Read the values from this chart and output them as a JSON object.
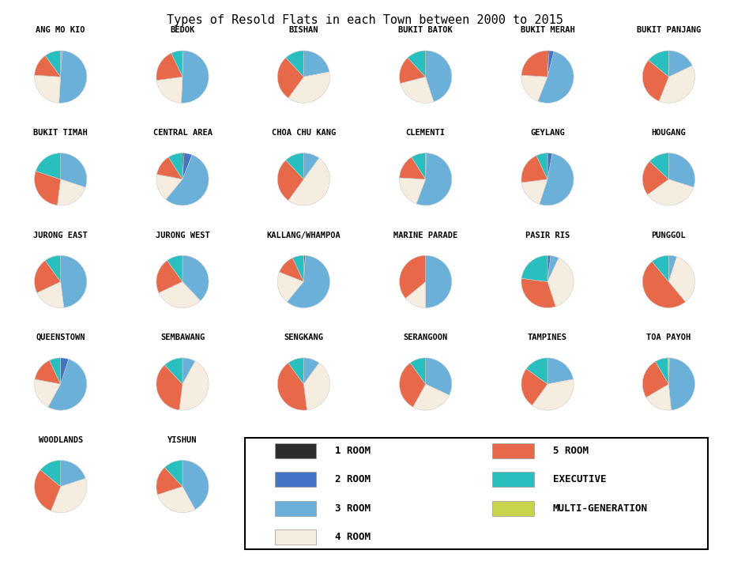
{
  "title": "Types of Resold Flats in each Town between 2000 to 2015",
  "colors": {
    "1 ROOM": "#2d2d2d",
    "2 ROOM": "#4472c4",
    "3 ROOM": "#6ab0d8",
    "4 ROOM": "#f5ede0",
    "5 ROOM": "#e8694a",
    "EXECUTIVE": "#2abfbf",
    "MULTI-GENERATION": "#c8d44c"
  },
  "towns": [
    "ANG MO KIO",
    "BEDOK",
    "BISHAN",
    "BUKIT BATOK",
    "BUKIT MERAH",
    "BUKIT PANJANG",
    "BUKIT TIMAH",
    "CENTRAL AREA",
    "CHOA CHU KANG",
    "CLEMENTI",
    "GEYLANG",
    "HOUGANG",
    "JURONG EAST",
    "JURONG WEST",
    "KALLANG/WHAMPOA",
    "MARINE PARADE",
    "PASIR RIS",
    "PUNGGOL",
    "QUEENSTOWN",
    "SEMBAWANG",
    "SENGKANG",
    "SERANGOON",
    "TAMPINES",
    "TOA PAYOH",
    "WOODLANDS",
    "YISHUN"
  ],
  "data": {
    "ANG MO KIO": {
      "1 ROOM": 0.5,
      "2 ROOM": 0.5,
      "3 ROOM": 50,
      "4 ROOM": 25,
      "5 ROOM": 14,
      "EXECUTIVE": 10,
      "MULTI-GENERATION": 0
    },
    "BEDOK": {
      "1 ROOM": 0,
      "2 ROOM": 0.5,
      "3 ROOM": 50,
      "4 ROOM": 22,
      "5 ROOM": 20,
      "EXECUTIVE": 7,
      "MULTI-GENERATION": 0
    },
    "BISHAN": {
      "1 ROOM": 0,
      "2 ROOM": 0,
      "3 ROOM": 22,
      "4 ROOM": 38,
      "5 ROOM": 28,
      "EXECUTIVE": 12,
      "MULTI-GENERATION": 0
    },
    "BUKIT BATOK": {
      "1 ROOM": 0,
      "2 ROOM": 0,
      "3 ROOM": 45,
      "4 ROOM": 26,
      "5 ROOM": 17,
      "EXECUTIVE": 12,
      "MULTI-GENERATION": 0
    },
    "BUKIT MERAH": {
      "1 ROOM": 1,
      "2 ROOM": 3,
      "3 ROOM": 52,
      "4 ROOM": 20,
      "5 ROOM": 24,
      "EXECUTIVE": 0,
      "MULTI-GENERATION": 0
    },
    "BUKIT PANJANG": {
      "1 ROOM": 0,
      "2 ROOM": 0,
      "3 ROOM": 18,
      "4 ROOM": 38,
      "5 ROOM": 30,
      "EXECUTIVE": 14,
      "MULTI-GENERATION": 0
    },
    "BUKIT TIMAH": {
      "1 ROOM": 0,
      "2 ROOM": 0,
      "3 ROOM": 30,
      "4 ROOM": 22,
      "5 ROOM": 28,
      "EXECUTIVE": 20,
      "MULTI-GENERATION": 0
    },
    "CENTRAL AREA": {
      "1 ROOM": 1,
      "2 ROOM": 5,
      "3 ROOM": 55,
      "4 ROOM": 17,
      "5 ROOM": 13,
      "EXECUTIVE": 9,
      "MULTI-GENERATION": 0
    },
    "CHOA CHU KANG": {
      "1 ROOM": 0,
      "2 ROOM": 0,
      "3 ROOM": 10,
      "4 ROOM": 50,
      "5 ROOM": 28,
      "EXECUTIVE": 12,
      "MULTI-GENERATION": 0
    },
    "CLEMENTI": {
      "1 ROOM": 0,
      "2 ROOM": 0.5,
      "3 ROOM": 55,
      "4 ROOM": 20,
      "5 ROOM": 15,
      "EXECUTIVE": 9,
      "MULTI-GENERATION": 0
    },
    "GEYLANG": {
      "1 ROOM": 0,
      "2 ROOM": 3,
      "3 ROOM": 52,
      "4 ROOM": 18,
      "5 ROOM": 20,
      "EXECUTIVE": 7,
      "MULTI-GENERATION": 0
    },
    "HOUGANG": {
      "1 ROOM": 0,
      "2 ROOM": 0,
      "3 ROOM": 30,
      "4 ROOM": 35,
      "5 ROOM": 22,
      "EXECUTIVE": 13,
      "MULTI-GENERATION": 0
    },
    "JURONG EAST": {
      "1 ROOM": 0,
      "2 ROOM": 0,
      "3 ROOM": 48,
      "4 ROOM": 20,
      "5 ROOM": 22,
      "EXECUTIVE": 10,
      "MULTI-GENERATION": 0
    },
    "JURONG WEST": {
      "1 ROOM": 0,
      "2 ROOM": 0,
      "3 ROOM": 38,
      "4 ROOM": 30,
      "5 ROOM": 22,
      "EXECUTIVE": 10,
      "MULTI-GENERATION": 0
    },
    "KALLANG/WHAMPOA": {
      "1 ROOM": 0,
      "2 ROOM": 1,
      "3 ROOM": 60,
      "4 ROOM": 20,
      "5 ROOM": 12,
      "EXECUTIVE": 7,
      "MULTI-GENERATION": 0
    },
    "MARINE PARADE": {
      "1 ROOM": 0,
      "2 ROOM": 0,
      "3 ROOM": 50,
      "4 ROOM": 14,
      "5 ROOM": 36,
      "EXECUTIVE": 0,
      "MULTI-GENERATION": 0
    },
    "PASIR RIS": {
      "1 ROOM": 0,
      "2 ROOM": 2,
      "3 ROOM": 5,
      "4 ROOM": 38,
      "5 ROOM": 32,
      "EXECUTIVE": 23,
      "MULTI-GENERATION": 0
    },
    "PUNGGOL": {
      "1 ROOM": 0,
      "2 ROOM": 0,
      "3 ROOM": 5,
      "4 ROOM": 34,
      "5 ROOM": 50,
      "EXECUTIVE": 11,
      "MULTI-GENERATION": 0
    },
    "QUEENSTOWN": {
      "1 ROOM": 0,
      "2 ROOM": 5,
      "3 ROOM": 53,
      "4 ROOM": 20,
      "5 ROOM": 15,
      "EXECUTIVE": 7,
      "MULTI-GENERATION": 0
    },
    "SEMBAWANG": {
      "1 ROOM": 0,
      "2 ROOM": 0,
      "3 ROOM": 8,
      "4 ROOM": 44,
      "5 ROOM": 36,
      "EXECUTIVE": 12,
      "MULTI-GENERATION": 0
    },
    "SENGKANG": {
      "1 ROOM": 0,
      "2 ROOM": 0,
      "3 ROOM": 10,
      "4 ROOM": 38,
      "5 ROOM": 42,
      "EXECUTIVE": 10,
      "MULTI-GENERATION": 0
    },
    "SERANGOON": {
      "1 ROOM": 0,
      "2 ROOM": 0,
      "3 ROOM": 32,
      "4 ROOM": 26,
      "5 ROOM": 32,
      "EXECUTIVE": 10,
      "MULTI-GENERATION": 0
    },
    "TAMPINES": {
      "1 ROOM": 0,
      "2 ROOM": 0,
      "3 ROOM": 22,
      "4 ROOM": 38,
      "5 ROOM": 25,
      "EXECUTIVE": 15,
      "MULTI-GENERATION": 0
    },
    "TOA PAYOH": {
      "1 ROOM": 0,
      "2 ROOM": 0.5,
      "3 ROOM": 48,
      "4 ROOM": 18,
      "5 ROOM": 25,
      "EXECUTIVE": 8,
      "MULTI-GENERATION": 0.5
    },
    "WOODLANDS": {
      "1 ROOM": 0,
      "2 ROOM": 0,
      "3 ROOM": 20,
      "4 ROOM": 36,
      "5 ROOM": 30,
      "EXECUTIVE": 14,
      "MULTI-GENERATION": 0
    },
    "YISHUN": {
      "1 ROOM": 0,
      "2 ROOM": 0,
      "3 ROOM": 42,
      "4 ROOM": 28,
      "5 ROOM": 18,
      "EXECUTIVE": 12,
      "MULTI-GENERATION": 0
    }
  },
  "n_cols": 6,
  "background": "#ffffff",
  "title_fontsize": 11,
  "label_fontsize": 7.5,
  "legend_fontsize": 9
}
